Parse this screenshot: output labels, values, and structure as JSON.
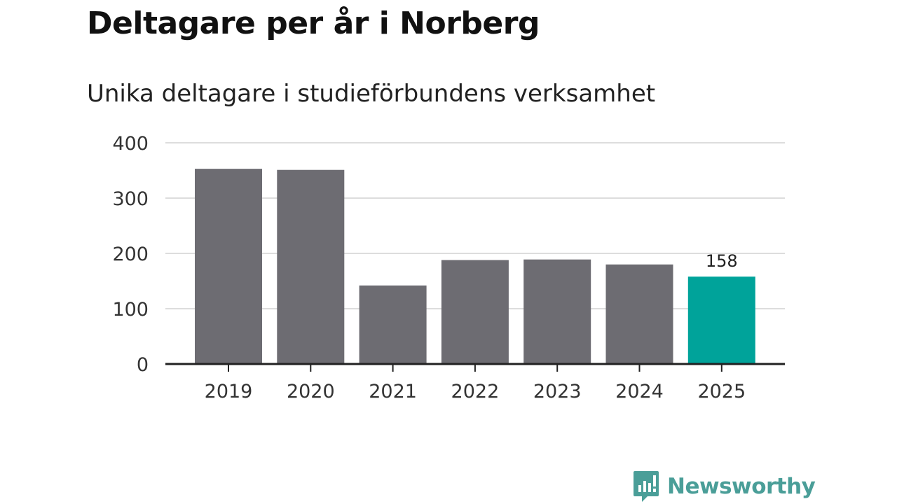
{
  "header": {
    "title": "Deltagare per år i Norberg",
    "subtitle": "Unika deltagare i studieförbundens verksamhet"
  },
  "chart_data": {
    "type": "bar",
    "title": "Deltagare per år i Norberg",
    "subtitle": "Unika deltagare i studieförbundens verksamhet",
    "categories": [
      "2019",
      "2020",
      "2021",
      "2022",
      "2023",
      "2024",
      "2025"
    ],
    "values": [
      353,
      351,
      142,
      188,
      189,
      180,
      158
    ],
    "ylim": [
      0,
      400
    ],
    "yticks": [
      0,
      100,
      200,
      300,
      400
    ],
    "grid": true,
    "annotations": [
      {
        "category": "2025",
        "label": "158"
      }
    ],
    "colors": {
      "default": "#6d6c72",
      "highlight": "#00a39a",
      "grid": "#dddddd",
      "axis": "#222222"
    },
    "highlight_index": 6
  },
  "branding": {
    "name": "Newsworthy",
    "logo_icon": "newsworthy-logo-icon",
    "color": "#4a9e98"
  }
}
